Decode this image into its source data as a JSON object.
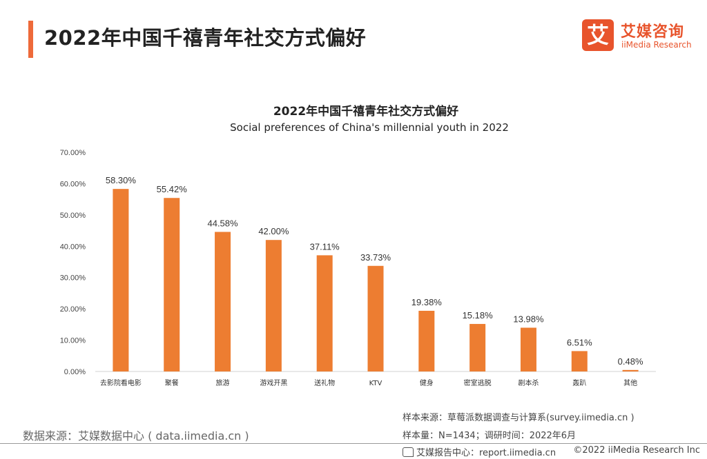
{
  "header": {
    "title": "2022年中国千禧青年社交方式偏好"
  },
  "logo": {
    "mark": "艾",
    "cn": "艾媒咨询",
    "en": "iiMedia Research",
    "color": "#e8542c"
  },
  "chart_data": {
    "type": "bar",
    "title": "2022年中国千禧青年社交方式偏好",
    "subtitle": "Social preferences of China's millennial youth in 2022",
    "categories": [
      "去影院看电影",
      "聚餐",
      "旅游",
      "游戏开黑",
      "送礼物",
      "KTV",
      "健身",
      "密室逃脱",
      "剧本杀",
      "轰趴",
      "其他"
    ],
    "values": [
      58.3,
      55.42,
      44.58,
      42.0,
      37.11,
      33.73,
      19.38,
      15.18,
      13.98,
      6.51,
      0.48
    ],
    "value_labels": [
      "58.30%",
      "55.42%",
      "44.58%",
      "42.00%",
      "37.11%",
      "33.73%",
      "19.38%",
      "15.18%",
      "13.98%",
      "6.51%",
      "0.48%"
    ],
    "ylim": [
      0,
      70
    ],
    "yticks": [
      0,
      10,
      20,
      30,
      40,
      50,
      60,
      70
    ],
    "ytick_labels": [
      "0.00%",
      "10.00%",
      "20.00%",
      "30.00%",
      "40.00%",
      "50.00%",
      "60.00%",
      "70.00%"
    ],
    "xlabel": "",
    "ylabel": "",
    "bar_color": "#ed7d31",
    "grid": false,
    "legend": "none"
  },
  "footer": {
    "data_source": "数据来源：艾媒数据中心 ( data.iimedia.cn )",
    "sample_source": "样本来源：草莓派数据调查与计算系(survey.iimedia.cn )",
    "sample_size": "样本量：N=1434；调研时间：2022年6月",
    "report": "艾媒报告中心：report.iimedia.cn",
    "copyright": "©2022 iiMedia Research Inc"
  }
}
